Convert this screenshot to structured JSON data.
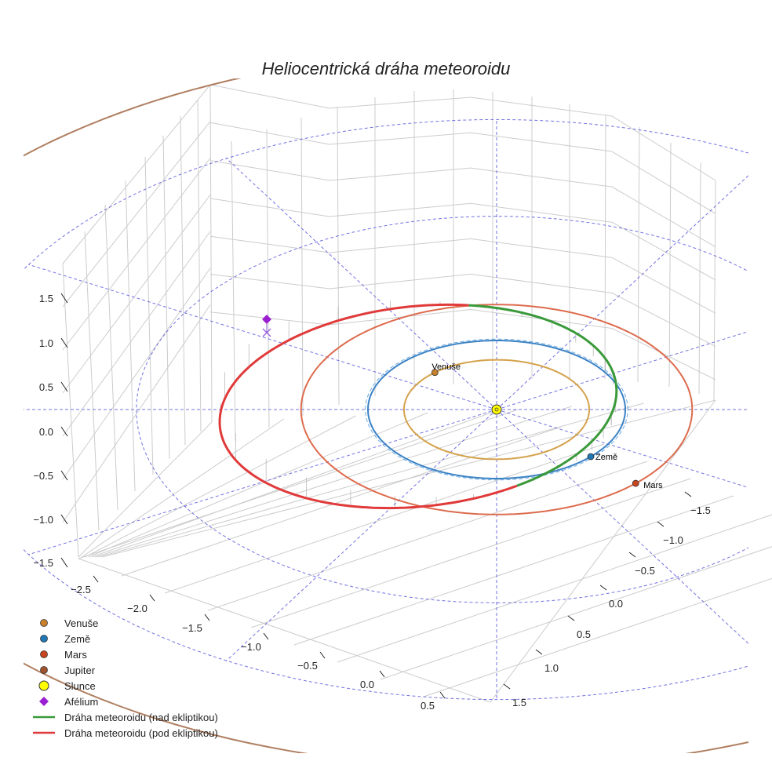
{
  "chart_data": {
    "type": "line",
    "projection": "3d",
    "title": "Heliocentrická dráha meteoroidu",
    "xlabel": "",
    "ylabel": "",
    "zlabel": "",
    "xlim": [
      -2.6,
      0.8
    ],
    "ylim": [
      -1.7,
      1.7
    ],
    "zlim": [
      -1.7,
      1.7
    ],
    "x_ticks": [
      "−2.5",
      "−2.0",
      "−1.5",
      "−1.0",
      "−0.5",
      "0.0",
      "0.5"
    ],
    "y_ticks": [
      "−1.5",
      "−1.0",
      "−0.5",
      "0.0",
      "0.5",
      "1.0",
      "1.5"
    ],
    "z_ticks": [
      "1.5",
      "1.0",
      "0.5",
      "0.0",
      "−0.5",
      "−1.0",
      "−1.5"
    ],
    "orbits": [
      {
        "name": "Venuše",
        "radius_au": 0.72,
        "color": "#d4a24c"
      },
      {
        "name": "Země",
        "radius_au": 1.0,
        "color": "#3b82c4"
      },
      {
        "name": "Mars",
        "radius_au": 1.52,
        "color": "#dd6b4d"
      },
      {
        "name": "Jupiter",
        "radius_au": 5.2,
        "color": "#b07f61"
      }
    ],
    "reference_circles_au": [
      2.8,
      4.2
    ],
    "bodies": [
      {
        "name": "Venuše",
        "color": "#c9822b",
        "label": "Venuše"
      },
      {
        "name": "Země",
        "color": "#1f77b4",
        "label": "Země"
      },
      {
        "name": "Mars",
        "color": "#c9441e",
        "label": "Mars"
      },
      {
        "name": "Slunce",
        "color": "#ffff00"
      }
    ],
    "meteoroid_orbit": {
      "perihelion_au": 0.92,
      "aphelion_au": 2.18,
      "above_ecliptic_color": "#3a9a3a",
      "below_ecliptic_color": "#e03a3a"
    },
    "aphelion_color": "#9a1fd0",
    "legend": [
      {
        "label": "Venuše",
        "marker": "circle",
        "color": "#c9822b"
      },
      {
        "label": "Země",
        "marker": "circle",
        "color": "#1f77b4"
      },
      {
        "label": "Mars",
        "marker": "circle",
        "color": "#c9441e"
      },
      {
        "label": "Jupiter",
        "marker": "circle",
        "color": "#a0522d"
      },
      {
        "label": "Slunce",
        "marker": "circle-large",
        "color": "#ffff00"
      },
      {
        "label": "Afélium",
        "marker": "diamond",
        "color": "#9a1fd0"
      },
      {
        "label": "Dráha meteoroidu (nad ekliptikou)",
        "marker": "line",
        "color": "#3a9a3a"
      },
      {
        "label": "Dráha meteoroidu (pod ekliptikou)",
        "marker": "line",
        "color": "#e03a3a"
      }
    ],
    "legend_position": "bottom-left"
  }
}
